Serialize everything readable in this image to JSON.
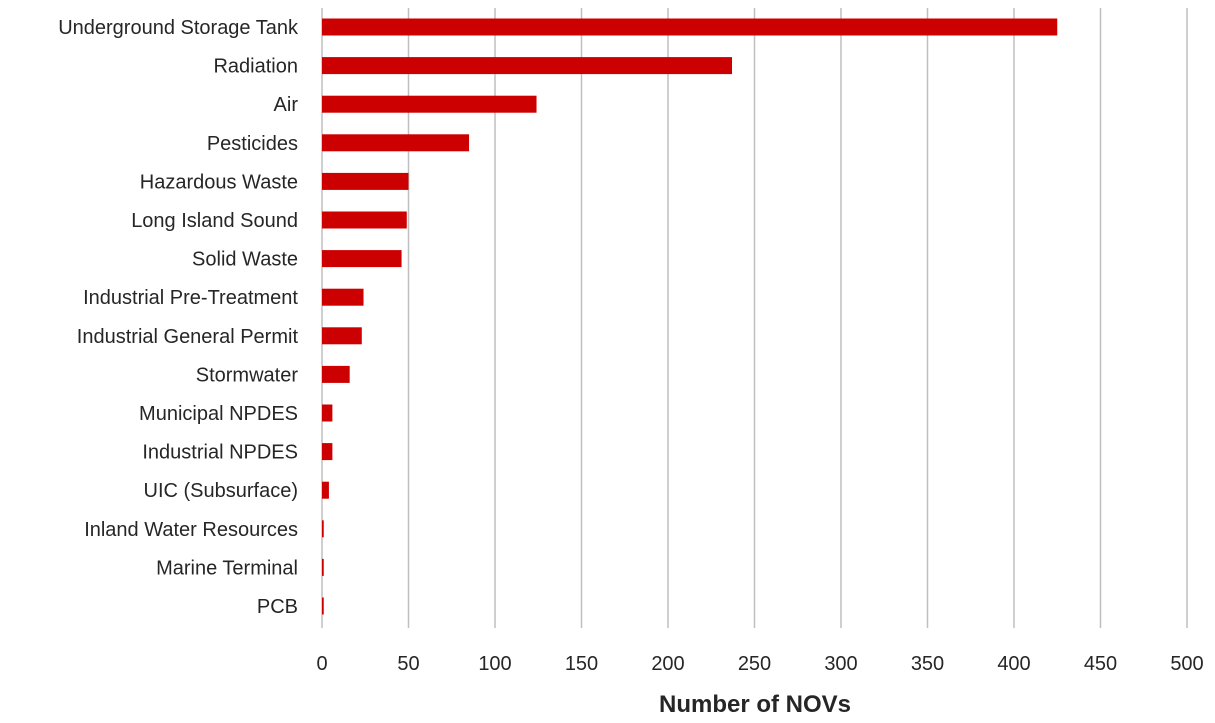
{
  "chart_data": {
    "type": "bar",
    "orientation": "horizontal",
    "categories": [
      "Underground Storage Tank",
      "Radiation",
      "Air",
      "Pesticides",
      "Hazardous Waste",
      "Long Island Sound",
      "Solid Waste",
      "Industrial Pre-Treatment",
      "Industrial General Permit",
      "Stormwater",
      "Municipal NPDES",
      "Industrial NPDES",
      "UIC (Subsurface)",
      "Inland Water Resources",
      "Marine Terminal",
      "PCB"
    ],
    "values": [
      425,
      237,
      124,
      85,
      50,
      49,
      46,
      24,
      23,
      16,
      6,
      6,
      4,
      1,
      1,
      1
    ],
    "xlabel": "Number of NOVs",
    "xlim": [
      0,
      500
    ],
    "xticks": [
      "0",
      "50",
      "100",
      "150",
      "200",
      "250",
      "300",
      "350",
      "400",
      "450",
      "500"
    ],
    "grid": "vertical",
    "bar_color": "#cc0000",
    "grid_color": "#bfbfbf"
  }
}
